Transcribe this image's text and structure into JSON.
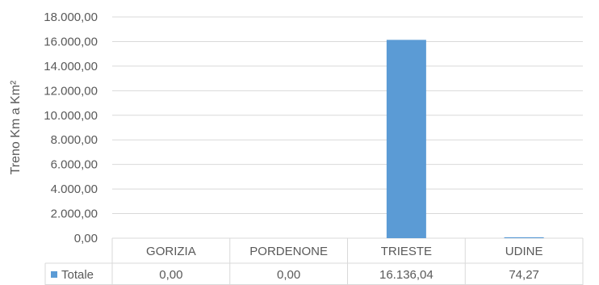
{
  "chart_data": {
    "type": "bar",
    "categories": [
      "GORIZIA",
      "PORDENONE",
      "TRIESTE",
      "UDINE"
    ],
    "series": [
      {
        "name": "Totale",
        "values": [
          0,
          0,
          16136.04,
          74.27
        ],
        "value_labels": [
          "0,00",
          "0,00",
          "16.136,04",
          "74,27"
        ],
        "color": "#5B9BD5"
      }
    ],
    "ylabel": "Treno Km a Km²",
    "ylim": [
      0,
      18000
    ],
    "y_ticks": [
      0,
      2000,
      4000,
      6000,
      8000,
      10000,
      12000,
      14000,
      16000,
      18000
    ],
    "y_tick_labels": [
      "0,00",
      "2.000,00",
      "4.000,00",
      "6.000,00",
      "8.000,00",
      "10.000,00",
      "12.000,00",
      "14.000,00",
      "16.000,00",
      "18.000,00"
    ],
    "grid": true,
    "legend": "data-table",
    "colors": {
      "grid": "#D9D9D9",
      "text": "#595959",
      "bar": "#5B9BD5"
    }
  }
}
